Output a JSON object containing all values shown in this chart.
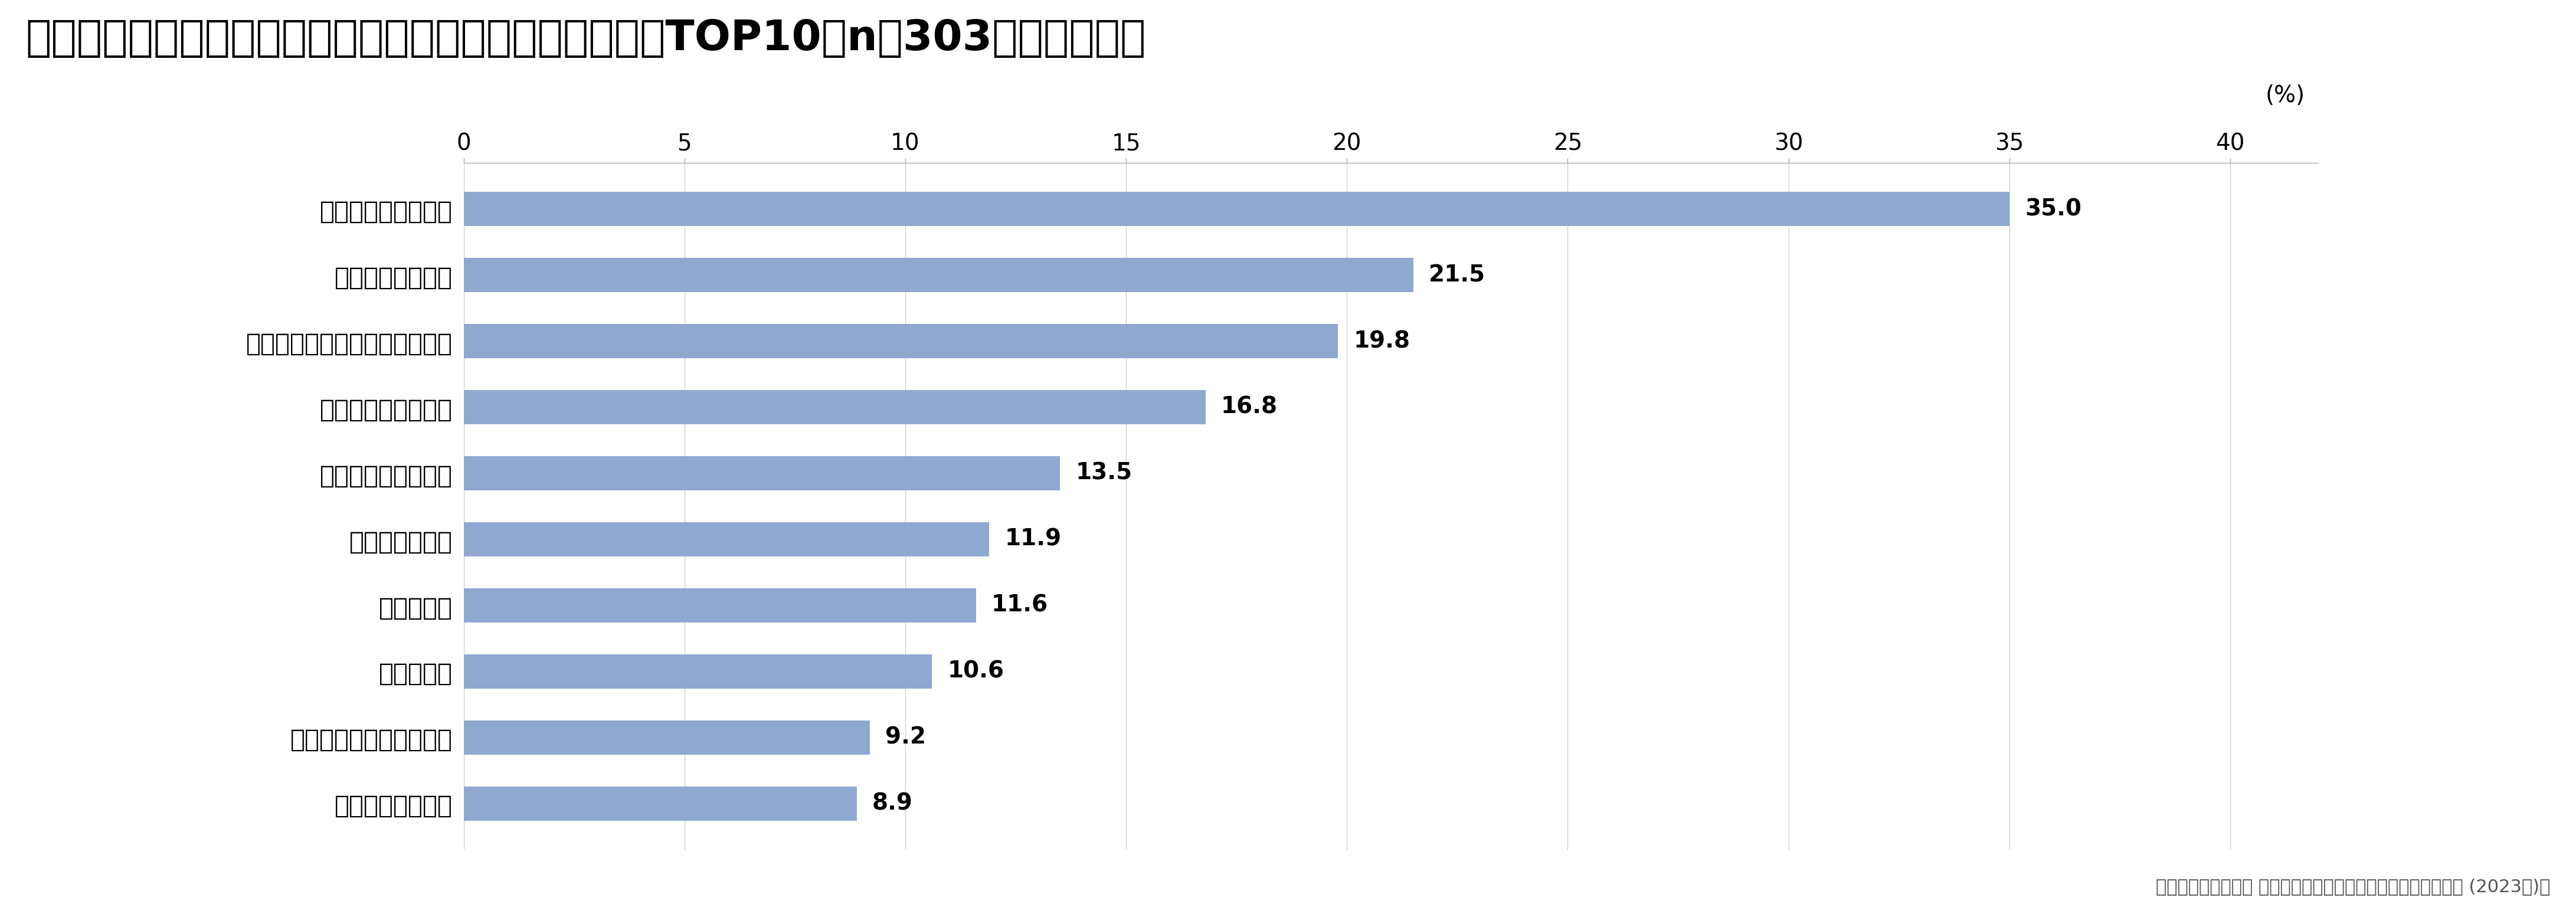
{
  "title": "暑さ対策における節電を行う上での困りごとや悩みごとTOP10（n＝303・複数回答）",
  "categories": [
    "初期投資がかかる",
    "節電対策をやりつくした",
    "夏バテした",
    "面倒くさい",
    "体調が優れない",
    "効果が感じられない",
    "家族が協力的でない",
    "効果的な節電対策がわからない",
    "効果がわからない",
    "暑さを我慢できない"
  ],
  "values": [
    8.9,
    9.2,
    10.6,
    11.6,
    11.9,
    13.5,
    16.8,
    19.8,
    21.5,
    35.0
  ],
  "bar_color": "#8fa8d0",
  "title_fontsize": 52,
  "tick_fontsize": 28,
  "value_fontsize": 28,
  "category_fontsize": 30,
  "source_text": "積水ハウス株式会社 住生活研究所「暑さ対策における節電調査 (2023年)」",
  "source_fontsize": 22,
  "xlabel": "(%)",
  "xlabel_fontsize": 28,
  "xlim": [
    0,
    42
  ],
  "xticks": [
    0,
    5,
    10,
    15,
    20,
    25,
    30,
    35,
    40
  ],
  "background_color": "#ffffff",
  "grid_color": "#d0d0d0",
  "spine_color": "#aaaaaa"
}
